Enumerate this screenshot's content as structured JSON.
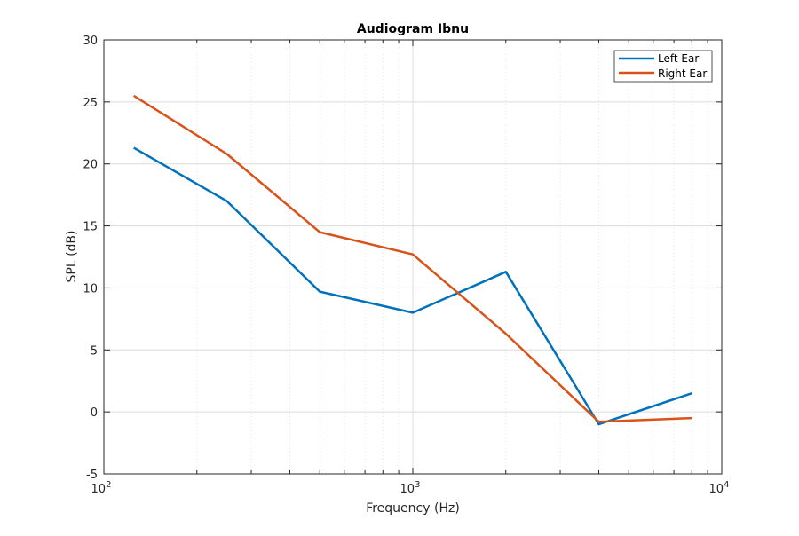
{
  "chart_data": {
    "type": "line",
    "title": "Audiogram Ibnu",
    "xlabel": "Frequency (Hz)",
    "ylabel": "SPL (dB)",
    "xscale": "log",
    "xlim": [
      100,
      10000
    ],
    "ylim": [
      -5,
      30
    ],
    "grid": "on (major and minor)",
    "legend_location": "top-right",
    "x_ticks": [
      {
        "value": 100,
        "base": "10",
        "exp": "2"
      },
      {
        "value": 1000,
        "base": "10",
        "exp": "3"
      },
      {
        "value": 10000,
        "base": "10",
        "exp": "4"
      }
    ],
    "y_ticks": [
      -5,
      0,
      5,
      10,
      15,
      20,
      25,
      30
    ],
    "x": [
      125,
      250,
      500,
      1000,
      2000,
      4000,
      8000
    ],
    "series": [
      {
        "name": "Left Ear",
        "color": "#0072BD",
        "values": [
          21.3,
          17.0,
          9.7,
          8.0,
          11.3,
          -1.0,
          1.5
        ]
      },
      {
        "name": "Right Ear",
        "color": "#D95319",
        "values": [
          25.5,
          20.8,
          14.5,
          12.7,
          6.3,
          -0.8,
          -0.5
        ]
      }
    ]
  }
}
